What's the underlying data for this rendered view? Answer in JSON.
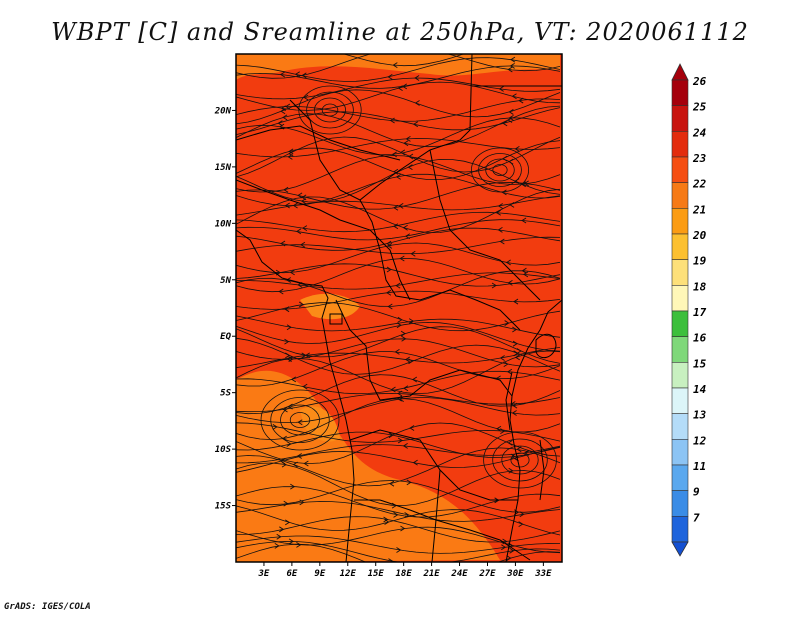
{
  "title": "WBPT [C] and Sreamline at 250hPa, VT: 2020061112",
  "credit": "GrADS: IGES/COLA",
  "map": {
    "lat_ticks": [
      {
        "label": "20N",
        "value": 20
      },
      {
        "label": "15N",
        "value": 15
      },
      {
        "label": "10N",
        "value": 10
      },
      {
        "label": "5N",
        "value": 5
      },
      {
        "label": "EQ",
        "value": 0
      },
      {
        "label": "5S",
        "value": -5
      },
      {
        "label": "10S",
        "value": -10
      },
      {
        "label": "15S",
        "value": -15
      }
    ],
    "lon_ticks": [
      {
        "label": "3E",
        "value": 3
      },
      {
        "label": "6E",
        "value": 6
      },
      {
        "label": "9E",
        "value": 9
      },
      {
        "label": "12E",
        "value": 12
      },
      {
        "label": "15E",
        "value": 15
      },
      {
        "label": "18E",
        "value": 18
      },
      {
        "label": "21E",
        "value": 21
      },
      {
        "label": "24E",
        "value": 24
      },
      {
        "label": "27E",
        "value": 27
      },
      {
        "label": "30E",
        "value": 30
      },
      {
        "label": "33E",
        "value": 33
      }
    ],
    "lon_range": [
      0,
      35
    ],
    "lat_range": [
      -20,
      25
    ],
    "field_colors": {
      "base": "#f23c0f",
      "warm": "#fa7a14",
      "light": "#fb8c18"
    }
  },
  "colorbar": {
    "levels": [
      {
        "label": "26",
        "color": "#a5000c"
      },
      {
        "label": "25",
        "color": "#c8140f"
      },
      {
        "label": "24",
        "color": "#e32c0d"
      },
      {
        "label": "23",
        "color": "#f54e12"
      },
      {
        "label": "22",
        "color": "#f67a16"
      },
      {
        "label": "21",
        "color": "#fb9c13"
      },
      {
        "label": "20",
        "color": "#fcc030"
      },
      {
        "label": "19",
        "color": "#fde07a"
      },
      {
        "label": "18",
        "color": "#fff7b8"
      },
      {
        "label": "17",
        "color": "#3cbf3c"
      },
      {
        "label": "16",
        "color": "#7fd87a"
      },
      {
        "label": "15",
        "color": "#c8f0c0"
      },
      {
        "label": "14",
        "color": "#dcf5f8"
      },
      {
        "label": "13",
        "color": "#b4dcf8"
      },
      {
        "label": "12",
        "color": "#8cc4f4"
      },
      {
        "label": "11",
        "color": "#5aa8ee"
      },
      {
        "label": "9",
        "color": "#3a8ce6"
      },
      {
        "label": "7",
        "color": "#1e64dc"
      }
    ],
    "bottom_color": "#1450d2"
  }
}
